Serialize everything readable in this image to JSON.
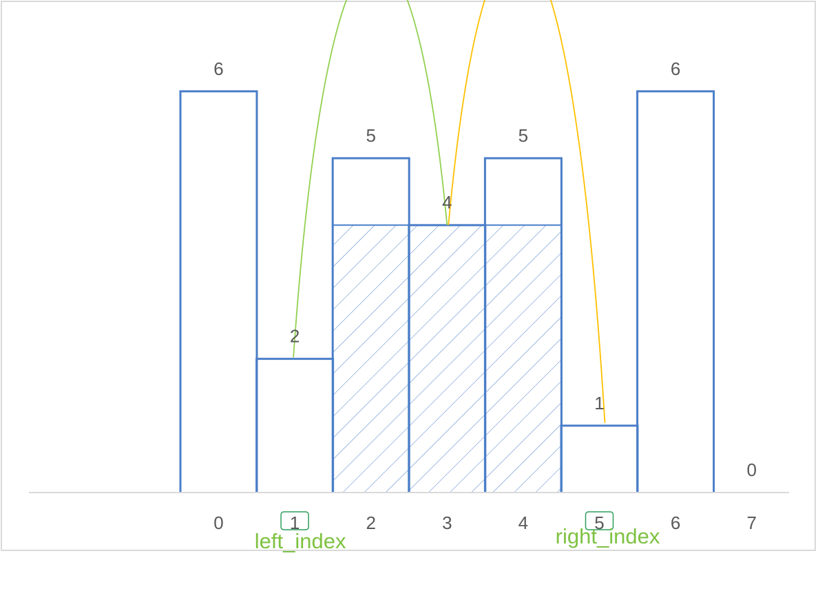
{
  "chart_data": {
    "type": "bar",
    "categories": [
      "0",
      "1",
      "2",
      "3",
      "4",
      "5",
      "6",
      "7"
    ],
    "values": [
      6,
      2,
      5,
      4,
      5,
      1,
      6,
      0
    ],
    "title": "",
    "xlabel": "",
    "ylabel": "",
    "ylim": [
      0,
      6
    ],
    "grid": false,
    "legend": "none",
    "highlighted_range": {
      "from_index": 2,
      "to_index": 4,
      "fill_height": 4
    },
    "annotations": [
      {
        "label": "left_index",
        "index": 1,
        "color": "#7ec242"
      },
      {
        "label": "right_index",
        "index": 5,
        "color": "#7ec242"
      }
    ],
    "arcs": [
      {
        "from_index": 1,
        "to_index": 3,
        "color": "#92d050"
      },
      {
        "from_index": 3,
        "to_index": 5,
        "color": "#ffc000"
      }
    ],
    "colors": {
      "bar_outline": "#4a7ec8",
      "axis": "#d9d9d9",
      "label": "#595959",
      "annotation_text": "#7ec242",
      "annotation_box": "#2e9e5b"
    }
  }
}
